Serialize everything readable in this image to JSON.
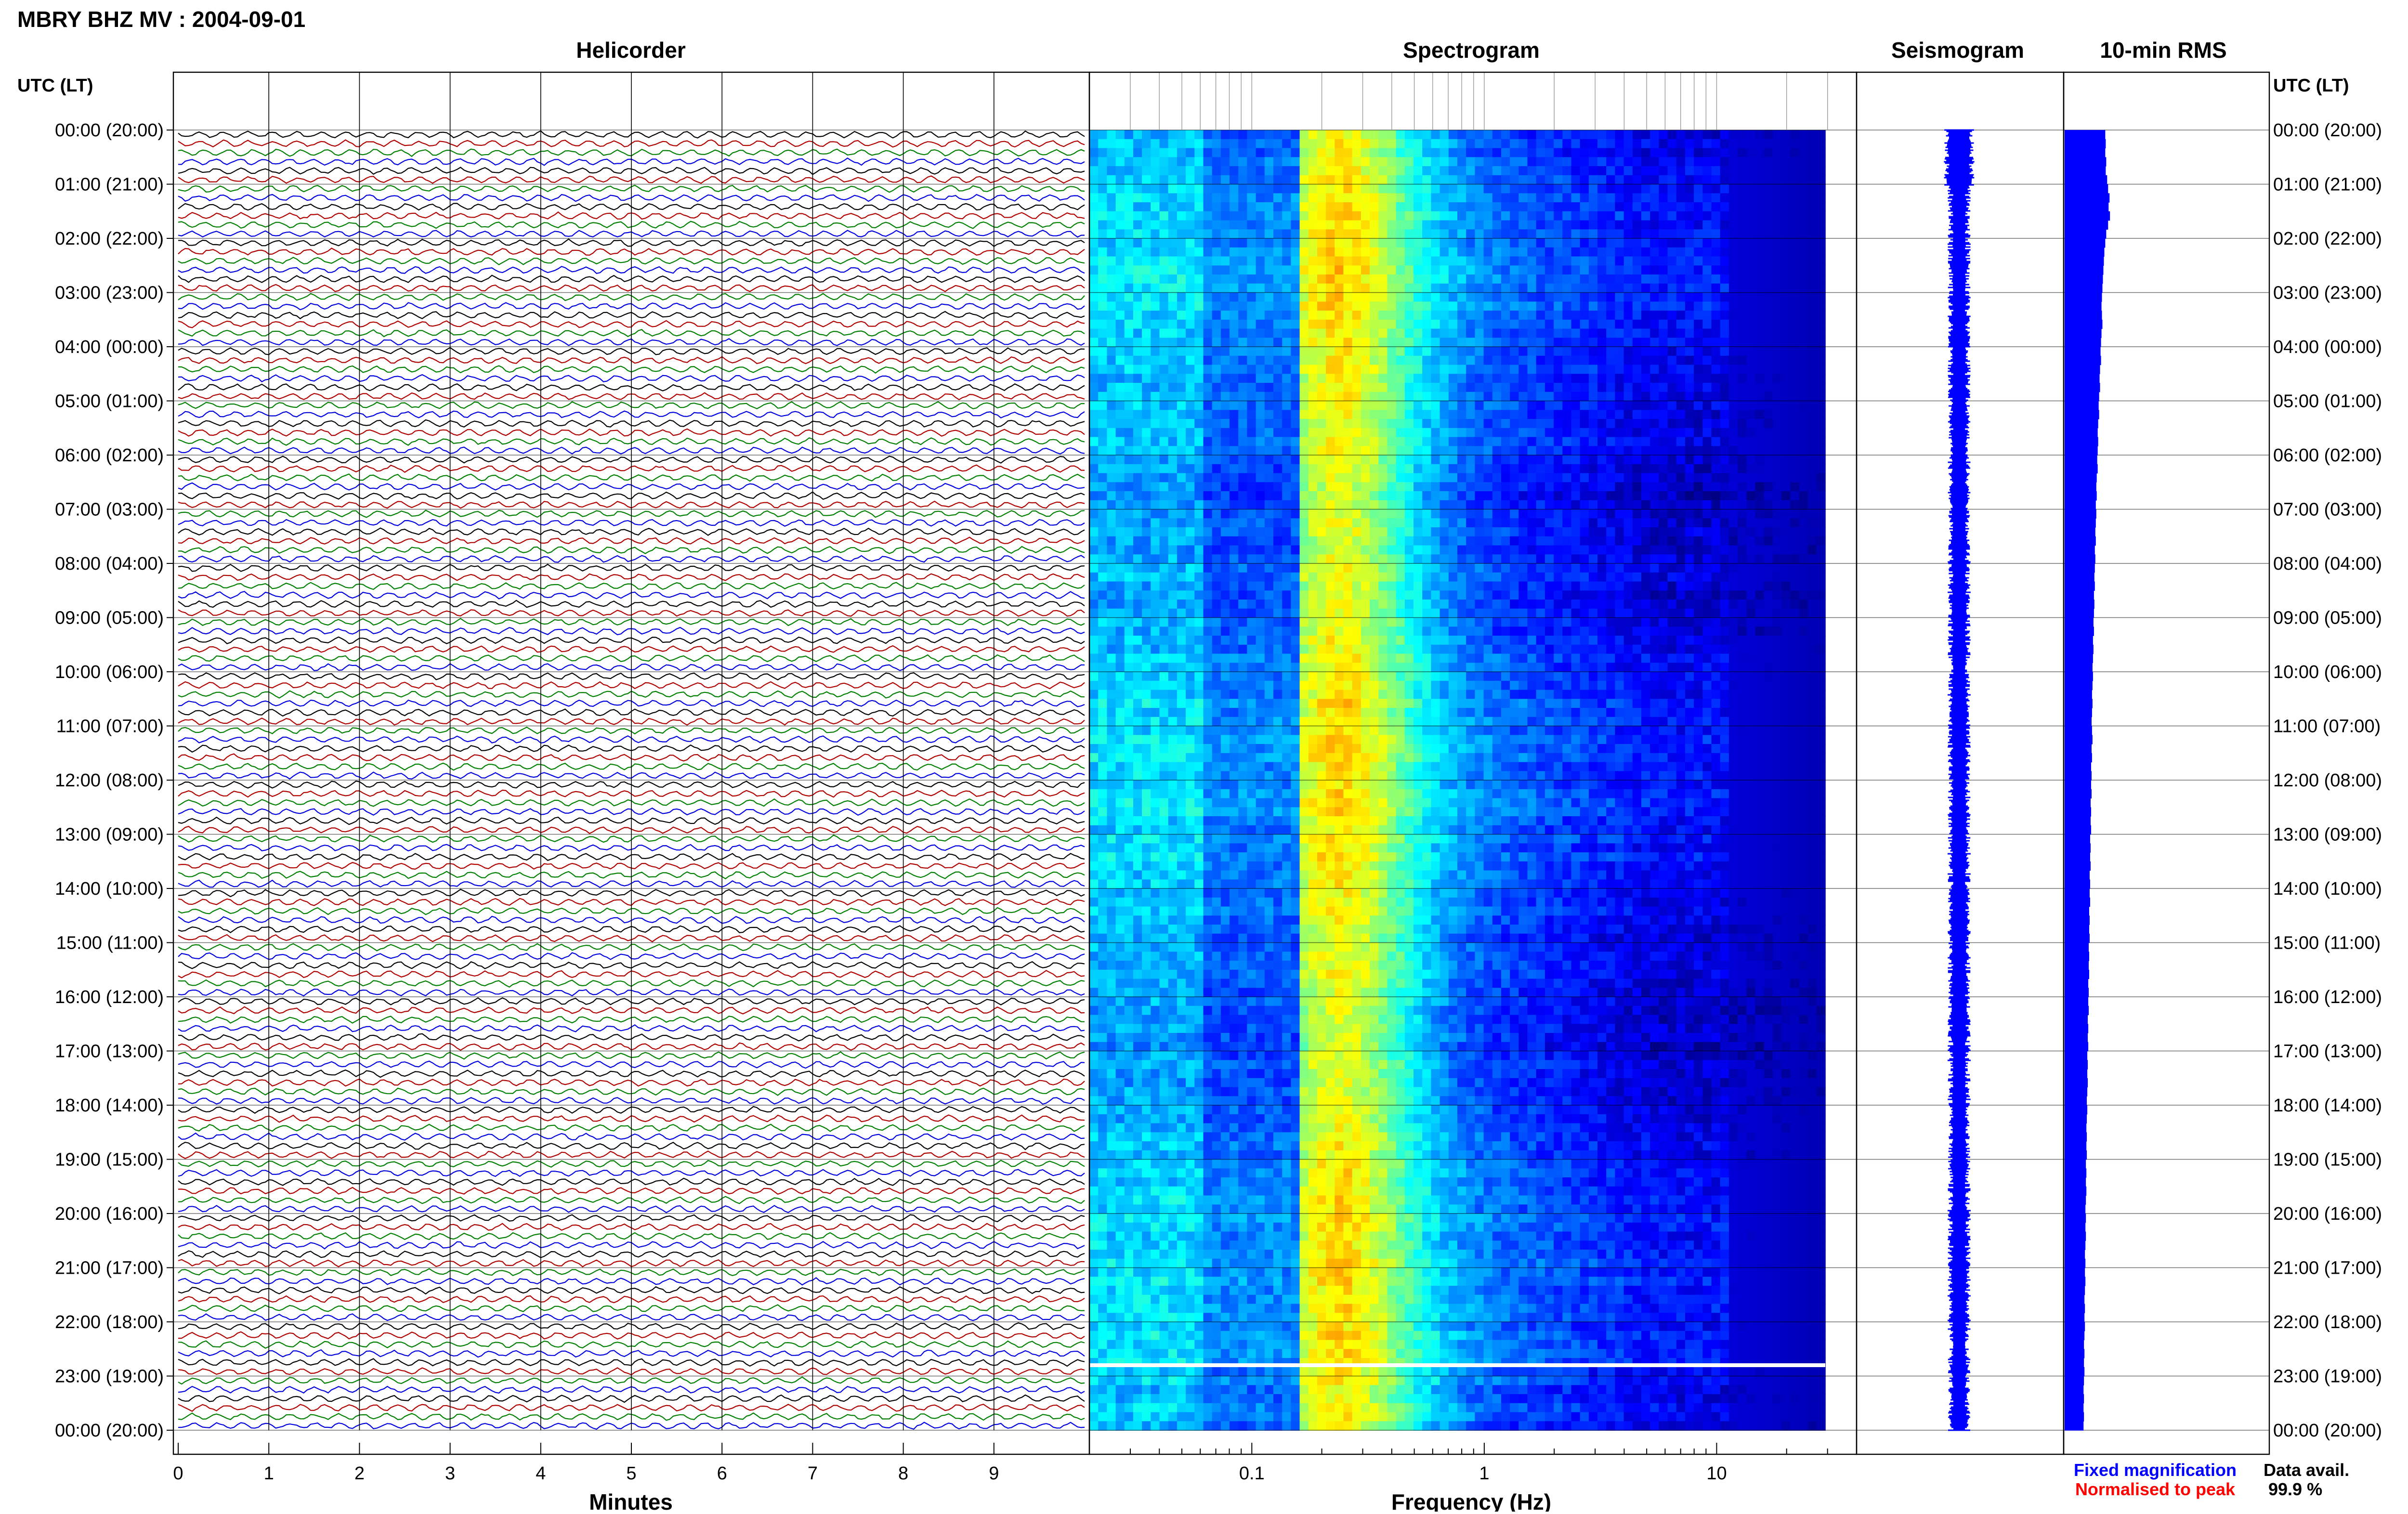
{
  "title": "MBRY BHZ MV : 2004-09-01",
  "panels": {
    "helicorder": "Helicorder",
    "spectrogram": "Spectrogram",
    "seismogram": "Seismogram",
    "rms": "10-min RMS"
  },
  "time_axis_label_left": "UTC (LT)",
  "time_axis_label_right": "UTC (LT)",
  "time_labels": [
    "00:00 (20:00)",
    "01:00 (21:00)",
    "02:00 (22:00)",
    "03:00 (23:00)",
    "04:00 (00:00)",
    "05:00 (01:00)",
    "06:00 (02:00)",
    "07:00 (03:00)",
    "08:00 (04:00)",
    "09:00 (05:00)",
    "10:00 (06:00)",
    "11:00 (07:00)",
    "12:00 (08:00)",
    "13:00 (09:00)",
    "14:00 (10:00)",
    "15:00 (11:00)",
    "16:00 (12:00)",
    "17:00 (13:00)",
    "18:00 (14:00)",
    "19:00 (15:00)",
    "20:00 (16:00)",
    "21:00 (17:00)",
    "22:00 (18:00)",
    "23:00 (19:00)",
    "00:00 (20:00)"
  ],
  "helicorder_axis": {
    "label": "Minutes",
    "ticks": [
      "0",
      "1",
      "2",
      "3",
      "4",
      "5",
      "6",
      "7",
      "8",
      "9"
    ],
    "trace_colors": [
      "#000000",
      "#b00000",
      "#008000",
      "#0000e0"
    ]
  },
  "spectrogram_axis": {
    "label": "Frequency (Hz)",
    "scale": "log",
    "ticks": [
      "0.1",
      "1",
      "10"
    ],
    "colormap": [
      "#00007f",
      "#0000ff",
      "#0080ff",
      "#00ffff",
      "#80ff80",
      "#ffff00",
      "#ff8000",
      "#ff0000"
    ]
  },
  "legend": {
    "fixed": "Fixed magnification",
    "fixed_color": "#0000ff",
    "normalised": "Normalised to peak",
    "normalised_color": "#ff0000",
    "availability_label": "Data avail.",
    "availability_value": "99.9 %"
  },
  "chart_data": [
    {
      "type": "line",
      "name": "helicorder",
      "x_unit": "minutes",
      "xlim": [
        0,
        10
      ],
      "rows_per_hour": 6,
      "hours": 24
    },
    {
      "type": "heatmap",
      "name": "spectrogram",
      "xscale": "log",
      "xlim": [
        0.02,
        40
      ],
      "dominant_band_hz": [
        0.15,
        0.4
      ],
      "data_gap_hour": 22.8
    },
    {
      "type": "bar",
      "name": "rms",
      "orientation": "horizontal",
      "interval_min": 10,
      "relative_values": [
        0.86,
        0.87,
        0.86,
        0.88,
        0.87,
        0.9,
        0.92,
        0.95,
        0.93,
        0.96,
        0.92,
        0.88,
        0.86,
        0.84,
        0.83,
        0.82,
        0.81,
        0.8,
        0.79,
        0.78,
        0.79,
        0.8,
        0.78,
        0.77,
        0.76,
        0.77,
        0.75,
        0.74,
        0.75,
        0.73,
        0.72,
        0.73,
        0.71,
        0.7,
        0.71,
        0.7,
        0.69,
        0.7,
        0.68,
        0.67,
        0.68,
        0.66,
        0.67,
        0.66,
        0.65,
        0.66,
        0.64,
        0.65,
        0.64,
        0.63,
        0.64,
        0.62,
        0.63,
        0.62,
        0.61,
        0.62,
        0.6,
        0.61,
        0.6,
        0.59,
        0.6,
        0.59,
        0.58,
        0.59,
        0.58,
        0.57,
        0.58,
        0.59,
        0.57,
        0.58,
        0.56,
        0.57,
        0.56,
        0.57,
        0.55,
        0.56,
        0.55,
        0.56,
        0.54,
        0.55,
        0.54,
        0.55,
        0.53,
        0.54,
        0.53,
        0.54,
        0.52,
        0.53,
        0.52,
        0.53,
        0.51,
        0.52,
        0.51,
        0.52,
        0.5,
        0.51,
        0.5,
        0.51,
        0.49,
        0.5,
        0.49,
        0.5,
        0.48,
        0.49,
        0.48,
        0.49,
        0.48,
        0.47,
        0.48,
        0.47,
        0.46,
        0.47,
        0.46,
        0.47,
        0.45,
        0.46,
        0.45,
        0.46,
        0.45,
        0.44,
        0.45,
        0.44,
        0.45,
        0.44,
        0.43,
        0.44,
        0.43,
        0.44,
        0.43,
        0.42,
        0.43,
        0.42,
        0.43,
        0.42,
        0.41,
        0.42,
        0.41,
        0.42,
        0.41,
        0.4,
        0.41,
        0.4,
        0.41,
        0.4
      ]
    }
  ]
}
